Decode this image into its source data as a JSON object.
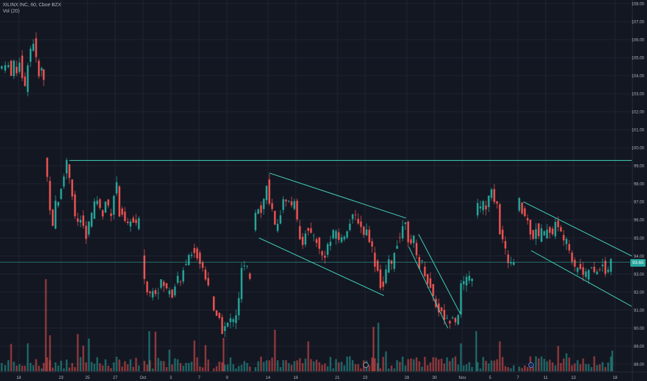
{
  "legend": {
    "symbol_line": "XILINX INC, 60, Cboe BZX",
    "volume_line": "Vol (20)"
  },
  "last_price": "93.65",
  "colors": {
    "background": "#131722",
    "grid": "#1f2433",
    "up": "#26a69a",
    "down": "#ef5350",
    "trendline": "#3fc7b3",
    "axis_text": "#b2b5be"
  },
  "chart_data": {
    "type": "candlestick",
    "symbol": "XILINX INC",
    "interval": "60",
    "exchange": "Cboe BZX",
    "y_axis": {
      "ticks": [
        88.0,
        89.0,
        90.0,
        91.0,
        92.0,
        93.0,
        94.0,
        95.0,
        96.0,
        97.0,
        98.0,
        99.0,
        100.0,
        101.0,
        102.0,
        103.0,
        104.0,
        105.0,
        106.0,
        107.0,
        108.0
      ],
      "range": [
        87.6,
        108.2
      ]
    },
    "x_axis": {
      "tick_labels": [
        "18",
        "23",
        "25",
        "27",
        "Oct",
        "3",
        "7",
        "9",
        "14",
        "16",
        "21",
        "23",
        "28",
        "30",
        "Nov",
        "5",
        "7",
        "11",
        "13",
        "18"
      ]
    },
    "price_segments": [
      [
        [
          0,
          104.4
        ],
        [
          5,
          104.5
        ],
        [
          10,
          104.4
        ],
        [
          14,
          104.8
        ],
        [
          18,
          104.0
        ],
        [
          22,
          104.6
        ],
        [
          26,
          104.3
        ],
        [
          30,
          104.9
        ],
        [
          34,
          104.0
        ],
        [
          38,
          103.3
        ],
        [
          42,
          104.8
        ],
        [
          46,
          105.5
        ],
        [
          50,
          105.9
        ],
        [
          54,
          104.8
        ],
        [
          58,
          104.2
        ],
        [
          62,
          104.3
        ],
        [
          64,
          103.8
        ]
      ],
      [
        [
          66,
          99.4
        ],
        [
          70,
          98.4
        ],
        [
          74,
          96.7
        ],
        [
          78,
          95.5
        ],
        [
          82,
          96.9
        ],
        [
          86,
          97.0
        ],
        [
          90,
          97.9
        ],
        [
          94,
          98.6
        ],
        [
          98,
          99.2
        ],
        [
          102,
          98.4
        ],
        [
          106,
          97.4
        ],
        [
          110,
          96.0
        ],
        [
          114,
          95.9
        ],
        [
          118,
          96.0
        ],
        [
          122,
          95.6
        ],
        [
          126,
          95.0
        ],
        [
          130,
          95.8
        ],
        [
          134,
          96.3
        ],
        [
          138,
          96.8
        ],
        [
          142,
          97.2
        ],
        [
          146,
          96.5
        ],
        [
          150,
          96.4
        ],
        [
          154,
          97.1
        ],
        [
          158,
          96.6
        ],
        [
          162,
          96.4
        ],
        [
          166,
          97.4
        ],
        [
          170,
          97.9
        ],
        [
          174,
          96.4
        ],
        [
          178,
          96.4
        ],
        [
          182,
          95.8
        ],
        [
          186,
          95.6
        ],
        [
          190,
          96.1
        ],
        [
          194,
          95.8
        ],
        [
          198,
          95.7
        ],
        [
          202,
          95.9
        ]
      ],
      [
        [
          206,
          94.1
        ],
        [
          210,
          92.8
        ],
        [
          214,
          92.0
        ],
        [
          218,
          91.9
        ],
        [
          222,
          92.3
        ],
        [
          226,
          92.1
        ],
        [
          230,
          92.2
        ],
        [
          234,
          92.5
        ],
        [
          238,
          92.4
        ],
        [
          242,
          92.1
        ],
        [
          246,
          92.2
        ],
        [
          250,
          91.9
        ],
        [
          254,
          92.5
        ],
        [
          258,
          92.7
        ],
        [
          262,
          92.4
        ],
        [
          266,
          93.4
        ],
        [
          270,
          93.7
        ],
        [
          274,
          94.1
        ],
        [
          278,
          94.3
        ],
        [
          282,
          94.2
        ],
        [
          286,
          94.0
        ],
        [
          290,
          93.6
        ],
        [
          294,
          93.3
        ],
        [
          298,
          92.9
        ],
        [
          302,
          92.5
        ]
      ],
      [
        [
          306,
          91.8
        ],
        [
          310,
          90.8
        ],
        [
          314,
          90.6
        ],
        [
          318,
          90.8
        ],
        [
          322,
          89.8
        ],
        [
          326,
          90.0
        ],
        [
          330,
          90.2
        ],
        [
          334,
          90.5
        ],
        [
          338,
          90.4
        ],
        [
          342,
          90.8
        ],
        [
          346,
          91.5
        ],
        [
          350,
          93.3
        ],
        [
          354,
          93.3
        ],
        [
          358,
          93.2
        ],
        [
          362,
          92.8
        ]
      ],
      [
        [
          366,
          95.6
        ],
        [
          370,
          96.5
        ],
        [
          374,
          96.8
        ],
        [
          378,
          96.6
        ],
        [
          382,
          97.1
        ],
        [
          386,
          98.1
        ],
        [
          390,
          96.8
        ],
        [
          394,
          96.4
        ],
        [
          398,
          95.5
        ],
        [
          402,
          96.0
        ],
        [
          406,
          96.4
        ],
        [
          410,
          97.0
        ],
        [
          414,
          97.2
        ],
        [
          418,
          97.0
        ],
        [
          422,
          96.8
        ],
        [
          426,
          97.2
        ],
        [
          430,
          95.8
        ],
        [
          434,
          95.1
        ],
        [
          438,
          94.8
        ],
        [
          442,
          95.4
        ],
        [
          446,
          95.3
        ],
        [
          450,
          95.2
        ],
        [
          454,
          95.1
        ],
        [
          458,
          94.9
        ],
        [
          462,
          94.3
        ],
        [
          466,
          94.0
        ],
        [
          470,
          94.1
        ],
        [
          474,
          94.6
        ],
        [
          478,
          94.8
        ],
        [
          482,
          95.2
        ],
        [
          486,
          95.4
        ],
        [
          490,
          95.0
        ],
        [
          494,
          94.9
        ],
        [
          498,
          95.2
        ],
        [
          502,
          95.6
        ],
        [
          506,
          95.8
        ],
        [
          510,
          96.1
        ],
        [
          514,
          96.2
        ],
        [
          518,
          96.0
        ],
        [
          522,
          95.6
        ],
        [
          526,
          95.3
        ],
        [
          530,
          95.4
        ],
        [
          534,
          95.0
        ],
        [
          538,
          94.4
        ],
        [
          542,
          93.6
        ],
        [
          546,
          93.2
        ],
        [
          550,
          92.4
        ],
        [
          554,
          92.3
        ],
        [
          558,
          93.1
        ],
        [
          562,
          93.6
        ],
        [
          566,
          93.5
        ],
        [
          570,
          94.3
        ],
        [
          574,
          94.8
        ],
        [
          578,
          95.1
        ],
        [
          582,
          95.6
        ],
        [
          586,
          96.1
        ],
        [
          590,
          95.0
        ],
        [
          594,
          94.5
        ],
        [
          598,
          94.9
        ],
        [
          602,
          94.0
        ],
        [
          606,
          93.5
        ],
        [
          610,
          93.6
        ],
        [
          614,
          93.1
        ],
        [
          618,
          92.6
        ],
        [
          622,
          92.2
        ],
        [
          626,
          91.8
        ],
        [
          630,
          91.3
        ],
        [
          634,
          91.0
        ],
        [
          638,
          90.8
        ],
        [
          642,
          90.6
        ],
        [
          646,
          90.4
        ],
        [
          650,
          90.5
        ],
        [
          654,
          90.8
        ],
        [
          658,
          90.4
        ],
        [
          662,
          90.9
        ],
        [
          666,
          92.3
        ],
        [
          670,
          92.5
        ],
        [
          674,
          92.6
        ],
        [
          678,
          92.8
        ],
        [
          682,
          92.9
        ]
      ],
      [
        [
          686,
          96.4
        ],
        [
          690,
          96.8
        ],
        [
          694,
          96.6
        ],
        [
          698,
          97.0
        ],
        [
          702,
          96.6
        ],
        [
          706,
          97.2
        ],
        [
          710,
          97.5
        ],
        [
          714,
          97.2
        ],
        [
          718,
          96.8
        ],
        [
          722,
          95.4
        ],
        [
          726,
          94.8
        ],
        [
          730,
          94.2
        ],
        [
          734,
          93.8
        ],
        [
          738,
          93.6
        ],
        [
          742,
          93.5
        ]
      ],
      [
        [
          746,
          96.6
        ],
        [
          750,
          97.0
        ],
        [
          754,
          96.4
        ],
        [
          758,
          96.2
        ],
        [
          762,
          95.9
        ],
        [
          766,
          95.4
        ],
        [
          770,
          95.1
        ],
        [
          774,
          95.6
        ],
        [
          778,
          95.0
        ],
        [
          782,
          95.4
        ],
        [
          786,
          95.2
        ],
        [
          790,
          95.6
        ],
        [
          794,
          95.4
        ],
        [
          798,
          95.3
        ],
        [
          802,
          95.8
        ],
        [
          806,
          95.5
        ],
        [
          810,
          95.4
        ],
        [
          814,
          94.9
        ],
        [
          818,
          94.7
        ],
        [
          822,
          94.4
        ],
        [
          826,
          93.9
        ],
        [
          830,
          93.2
        ],
        [
          834,
          93.5
        ],
        [
          838,
          93.4
        ],
        [
          842,
          93.0
        ],
        [
          846,
          92.9
        ],
        [
          850,
          93.3
        ],
        [
          854,
          93.2
        ],
        [
          858,
          93.0
        ],
        [
          862,
          93.2
        ],
        [
          866,
          93.4
        ],
        [
          870,
          93.6
        ],
        [
          874,
          93.1
        ],
        [
          878,
          93.3
        ],
        [
          882,
          93.65
        ]
      ]
    ],
    "horizontal_lines": [
      {
        "name": "resistance-99.3",
        "y": 99.3,
        "x_start": 100,
        "x_end": 910
      },
      {
        "name": "last-price-line",
        "y": 93.65,
        "x_start": 0,
        "x_end": 910
      }
    ],
    "trendlines": [
      {
        "name": "channel-oct-upper",
        "from": [
          388,
          98.6
        ],
        "to": [
          585,
          96.1
        ]
      },
      {
        "name": "channel-oct-lower",
        "from": [
          373,
          95.0
        ],
        "to": [
          553,
          91.8
        ]
      },
      {
        "name": "channel-late-oct-upper",
        "from": [
          603,
          95.2
        ],
        "to": [
          663,
          90.8
        ]
      },
      {
        "name": "channel-late-oct-lower",
        "from": [
          589,
          94.5
        ],
        "to": [
          645,
          90.0
        ]
      },
      {
        "name": "channel-nov-upper",
        "from": [
          754,
          97.0
        ],
        "to": [
          910,
          94.0
        ]
      },
      {
        "name": "channel-nov-lower",
        "from": [
          765,
          94.3
        ],
        "to": [
          910,
          91.2
        ]
      }
    ]
  }
}
